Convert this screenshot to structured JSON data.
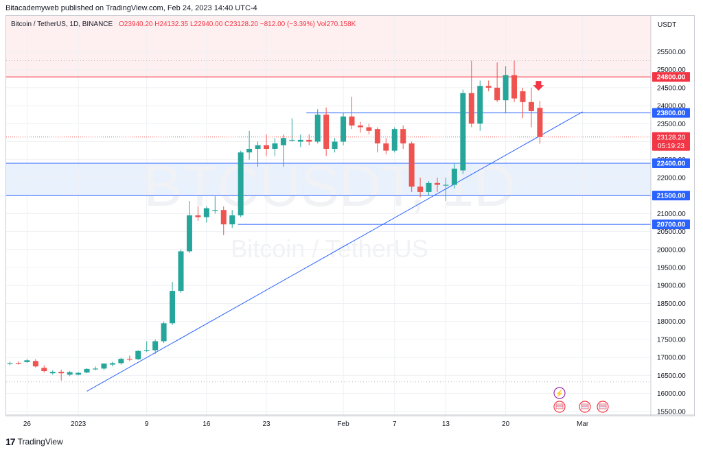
{
  "header": {
    "published": "Bitacademyweb published on TradingView.com, Feb 24, 2023 14:40 UTC-4"
  },
  "legend": {
    "symbol": "Bitcoin / TetherUS, 1D, BINANCE",
    "open": "O23940.20",
    "high": "H24132.35",
    "low": "L22940.00",
    "close": "C23128.20",
    "change": "−812.00 (−3.39%)",
    "volume": "Vol270.158K"
  },
  "watermark": {
    "ticker": "BTCUSDT, 1D",
    "name": "Bitcoin / TetherUS"
  },
  "footer": {
    "brand": "TradingView"
  },
  "colors": {
    "up": "#26a69a",
    "down": "#ef5350",
    "line": "#2962ff",
    "resistance": "#f23645"
  },
  "chart_data": {
    "type": "candlestick",
    "currency": "USDT",
    "ylim": [
      15400,
      26500
    ],
    "y_ticks": [
      15500,
      16000,
      16500,
      17000,
      17500,
      18000,
      18500,
      19000,
      19500,
      20000,
      20500,
      21000,
      21500,
      22000,
      22500,
      23000,
      23500,
      24000,
      24500,
      25000,
      25500
    ],
    "x_ticks": [
      {
        "label": "26",
        "index": 2
      },
      {
        "label": "2023",
        "index": 8
      },
      {
        "label": "9",
        "index": 16
      },
      {
        "label": "16",
        "index": 23
      },
      {
        "label": "23",
        "index": 30
      },
      {
        "label": "Feb",
        "index": 39
      },
      {
        "label": "7",
        "index": 45
      },
      {
        "label": "13",
        "index": 51
      },
      {
        "label": "20",
        "index": 58
      },
      {
        "label": "Mar",
        "index": 67
      }
    ],
    "candles": [
      {
        "o": 16820,
        "h": 16880,
        "l": 16780,
        "c": 16840
      },
      {
        "o": 16850,
        "h": 16890,
        "l": 16800,
        "c": 16830
      },
      {
        "o": 16870,
        "h": 16960,
        "l": 16850,
        "c": 16920
      },
      {
        "o": 16900,
        "h": 16950,
        "l": 16720,
        "c": 16750
      },
      {
        "o": 16710,
        "h": 16780,
        "l": 16580,
        "c": 16620
      },
      {
        "o": 16560,
        "h": 16640,
        "l": 16520,
        "c": 16600
      },
      {
        "o": 16600,
        "h": 16660,
        "l": 16360,
        "c": 16560
      },
      {
        "o": 16520,
        "h": 16620,
        "l": 16480,
        "c": 16590
      },
      {
        "o": 16520,
        "h": 16600,
        "l": 16500,
        "c": 16570
      },
      {
        "o": 16580,
        "h": 16700,
        "l": 16560,
        "c": 16680
      },
      {
        "o": 16670,
        "h": 16750,
        "l": 16640,
        "c": 16690
      },
      {
        "o": 16690,
        "h": 16830,
        "l": 16640,
        "c": 16830
      },
      {
        "o": 16800,
        "h": 16880,
        "l": 16750,
        "c": 16840
      },
      {
        "o": 16840,
        "h": 16990,
        "l": 16800,
        "c": 16960
      },
      {
        "o": 16960,
        "h": 17050,
        "l": 16900,
        "c": 16950
      },
      {
        "o": 16950,
        "h": 17200,
        "l": 16930,
        "c": 17180
      },
      {
        "o": 17200,
        "h": 17450,
        "l": 17150,
        "c": 17200
      },
      {
        "o": 17200,
        "h": 17500,
        "l": 17100,
        "c": 17450
      },
      {
        "o": 17450,
        "h": 18000,
        "l": 17400,
        "c": 17950
      },
      {
        "o": 17950,
        "h": 19100,
        "l": 17900,
        "c": 18850
      },
      {
        "o": 18850,
        "h": 20000,
        "l": 18800,
        "c": 19950
      },
      {
        "o": 19950,
        "h": 21350,
        "l": 19900,
        "c": 20950
      },
      {
        "o": 20950,
        "h": 21200,
        "l": 20800,
        "c": 20900
      },
      {
        "o": 20900,
        "h": 21200,
        "l": 20750,
        "c": 21150
      },
      {
        "o": 21100,
        "h": 21480,
        "l": 21000,
        "c": 21100
      },
      {
        "o": 21100,
        "h": 21200,
        "l": 20400,
        "c": 20700
      },
      {
        "o": 20700,
        "h": 21100,
        "l": 20600,
        "c": 20950
      },
      {
        "o": 20950,
        "h": 22750,
        "l": 20900,
        "c": 22700
      },
      {
        "o": 22700,
        "h": 23300,
        "l": 22500,
        "c": 22800
      },
      {
        "o": 22800,
        "h": 23000,
        "l": 22300,
        "c": 22900
      },
      {
        "o": 22900,
        "h": 23200,
        "l": 22600,
        "c": 22800
      },
      {
        "o": 22800,
        "h": 23100,
        "l": 22600,
        "c": 22950
      },
      {
        "o": 22900,
        "h": 23200,
        "l": 22300,
        "c": 23100
      },
      {
        "o": 23050,
        "h": 23650,
        "l": 23000,
        "c": 23050
      },
      {
        "o": 23000,
        "h": 23200,
        "l": 22850,
        "c": 23050
      },
      {
        "o": 23050,
        "h": 23200,
        "l": 22900,
        "c": 23000
      },
      {
        "o": 23000,
        "h": 23900,
        "l": 22950,
        "c": 23750
      },
      {
        "o": 23750,
        "h": 23950,
        "l": 22600,
        "c": 22800
      },
      {
        "o": 22800,
        "h": 23100,
        "l": 22700,
        "c": 23000
      },
      {
        "o": 23000,
        "h": 23800,
        "l": 22900,
        "c": 23700
      },
      {
        "o": 23700,
        "h": 24250,
        "l": 23350,
        "c": 23450
      },
      {
        "o": 23450,
        "h": 23550,
        "l": 23250,
        "c": 23400
      },
      {
        "o": 23400,
        "h": 23500,
        "l": 23200,
        "c": 23300
      },
      {
        "o": 23350,
        "h": 23400,
        "l": 22700,
        "c": 22950
      },
      {
        "o": 22950,
        "h": 23100,
        "l": 22650,
        "c": 22750
      },
      {
        "o": 22750,
        "h": 23400,
        "l": 22700,
        "c": 23350
      },
      {
        "o": 23350,
        "h": 23450,
        "l": 22800,
        "c": 22950
      },
      {
        "o": 22950,
        "h": 23000,
        "l": 21600,
        "c": 21750
      },
      {
        "o": 21750,
        "h": 22000,
        "l": 21450,
        "c": 21600
      },
      {
        "o": 21600,
        "h": 21900,
        "l": 21500,
        "c": 21850
      },
      {
        "o": 21850,
        "h": 22000,
        "l": 21600,
        "c": 21800
      },
      {
        "o": 21800,
        "h": 22000,
        "l": 21350,
        "c": 21800
      },
      {
        "o": 21800,
        "h": 22400,
        "l": 21700,
        "c": 22250
      },
      {
        "o": 22200,
        "h": 24450,
        "l": 22100,
        "c": 24350
      },
      {
        "o": 24350,
        "h": 25250,
        "l": 23400,
        "c": 23500
      },
      {
        "o": 23500,
        "h": 24700,
        "l": 23300,
        "c": 24550
      },
      {
        "o": 24550,
        "h": 24700,
        "l": 24400,
        "c": 24500
      },
      {
        "o": 24500,
        "h": 25200,
        "l": 24100,
        "c": 24150
      },
      {
        "o": 24150,
        "h": 25100,
        "l": 23800,
        "c": 24850
      },
      {
        "o": 24850,
        "h": 25250,
        "l": 24100,
        "c": 24200
      },
      {
        "o": 24400,
        "h": 24500,
        "l": 23650,
        "c": 24100
      },
      {
        "o": 24100,
        "h": 24500,
        "l": 23400,
        "c": 23850
      },
      {
        "o": 23940,
        "h": 24132,
        "l": 22940,
        "c": 23128
      }
    ],
    "levels": [
      {
        "price": 24800,
        "label": "24800.00",
        "style": "resistance"
      },
      {
        "price": 23800,
        "label": "23800.00",
        "style": "level",
        "from_index": 35
      },
      {
        "price": 22400,
        "label": "22400.00",
        "style": "zone-top"
      },
      {
        "price": 21500,
        "label": "21500.00",
        "style": "zone-bottom"
      },
      {
        "price": 20700,
        "label": "20700.00",
        "style": "level",
        "from_index": 27
      }
    ],
    "current_price": {
      "price": 23128.2,
      "label": "23128.20",
      "countdown": "05:19:23"
    },
    "trendline": [
      {
        "index": 9,
        "price": 16060
      },
      {
        "index": 67,
        "price": 23830
      }
    ],
    "axis_unit_label": "USDT"
  }
}
